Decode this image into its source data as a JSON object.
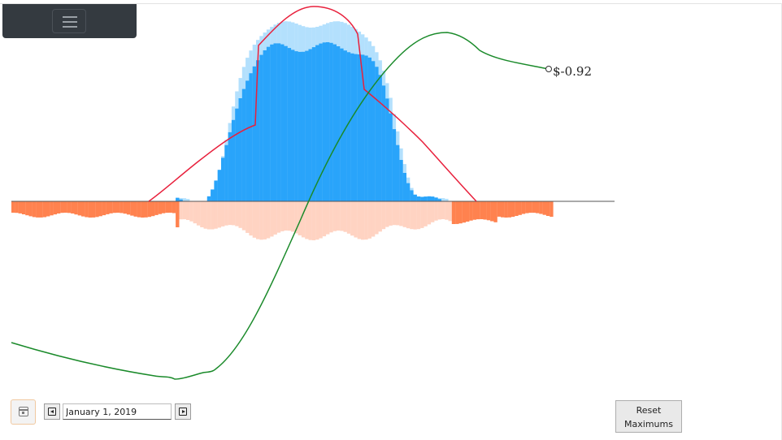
{
  "app": {
    "menu_icon": "hamburger-icon"
  },
  "chart_data": {
    "type": "bar",
    "title": "",
    "xlabel": "",
    "ylabel": "",
    "grid": false,
    "legend": "none",
    "colors": {
      "positive_current": "#29a4fa",
      "positive_max": "#b3e0fd",
      "negative_current": "#ff824f",
      "negative_max": "#ffd3c2",
      "envelope_line": "#e8203c",
      "cumulative_line": "#1a8a2a",
      "baseline": "#555555"
    },
    "annotations": [
      {
        "text": "$-0.92",
        "series": "cumulative",
        "position": "end"
      }
    ]
  },
  "controls": {
    "calendar_icon": "calendar-icon",
    "prev_icon": "prev-day-icon",
    "next_icon": "next-day-icon",
    "date_value": "January 1, 2019",
    "reset_label_line1": "Reset",
    "reset_label_line2": "Maximums"
  }
}
